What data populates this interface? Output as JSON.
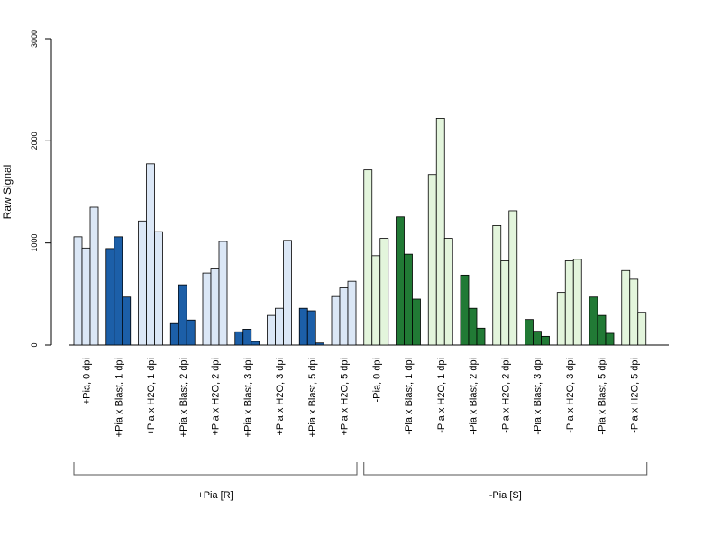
{
  "chart_data": {
    "type": "bar",
    "title": "",
    "xlabel": "",
    "ylabel": "Raw Signal",
    "ylim": [
      0,
      3000
    ],
    "yticks": [
      0,
      1000,
      2000,
      3000
    ],
    "grid": false,
    "colors": {
      "light_blue": "#dbe7f6",
      "dark_blue": "#1c5fa8",
      "light_green": "#e3f5dc",
      "dark_green": "#217a35",
      "outline": "#000000"
    },
    "groups": [
      {
        "label": "+Pia, 0 dpi",
        "color": "light_blue",
        "values": [
          1060,
          950,
          1350
        ]
      },
      {
        "label": "+Pia x Blast, 1 dpi",
        "color": "dark_blue",
        "values": [
          945,
          1060,
          470
        ]
      },
      {
        "label": "+Pia x H2O, 1 dpi",
        "color": "light_blue",
        "values": [
          1215,
          1775,
          1110
        ]
      },
      {
        "label": "+Pia x Blast, 2 dpi",
        "color": "dark_blue",
        "values": [
          210,
          590,
          245
        ]
      },
      {
        "label": "+Pia x H2O, 2 dpi",
        "color": "light_blue",
        "values": [
          705,
          745,
          1015
        ]
      },
      {
        "label": "+Pia x Blast, 3 dpi",
        "color": "dark_blue",
        "values": [
          130,
          155,
          35
        ]
      },
      {
        "label": "+Pia x H2O, 3 dpi",
        "color": "light_blue",
        "values": [
          290,
          360,
          1025
        ]
      },
      {
        "label": "+Pia x Blast, 5 dpi",
        "color": "dark_blue",
        "values": [
          360,
          335,
          20
        ]
      },
      {
        "label": "+Pia x H2O, 5 dpi",
        "color": "light_blue",
        "values": [
          475,
          560,
          625
        ]
      },
      {
        "label": "-Pia, 0 dpi",
        "color": "light_green",
        "values": [
          1715,
          875,
          1045
        ]
      },
      {
        "label": "-Pia x Blast, 1 dpi",
        "color": "dark_green",
        "values": [
          1255,
          890,
          450
        ]
      },
      {
        "label": "-Pia x H2O, 1 dpi",
        "color": "light_green",
        "values": [
          1670,
          2220,
          1045
        ]
      },
      {
        "label": "-Pia x Blast, 2 dpi",
        "color": "dark_green",
        "values": [
          685,
          360,
          165
        ]
      },
      {
        "label": "-Pia x H2O, 2 dpi",
        "color": "light_green",
        "values": [
          1170,
          825,
          1315
        ]
      },
      {
        "label": "-Pia x Blast, 3 dpi",
        "color": "dark_green",
        "values": [
          250,
          135,
          85
        ]
      },
      {
        "label": "-Pia x H2O, 3 dpi",
        "color": "light_green",
        "values": [
          515,
          825,
          840
        ]
      },
      {
        "label": "-Pia x Blast, 5 dpi",
        "color": "dark_green",
        "values": [
          470,
          290,
          115
        ]
      },
      {
        "label": "-Pia x H2O, 5 dpi",
        "color": "light_green",
        "values": [
          730,
          645,
          320
        ]
      }
    ],
    "brackets": [
      {
        "label": "+Pia [R]",
        "from_group": 0,
        "to_group": 8
      },
      {
        "label": "-Pia [S]",
        "from_group": 9,
        "to_group": 17
      }
    ]
  }
}
